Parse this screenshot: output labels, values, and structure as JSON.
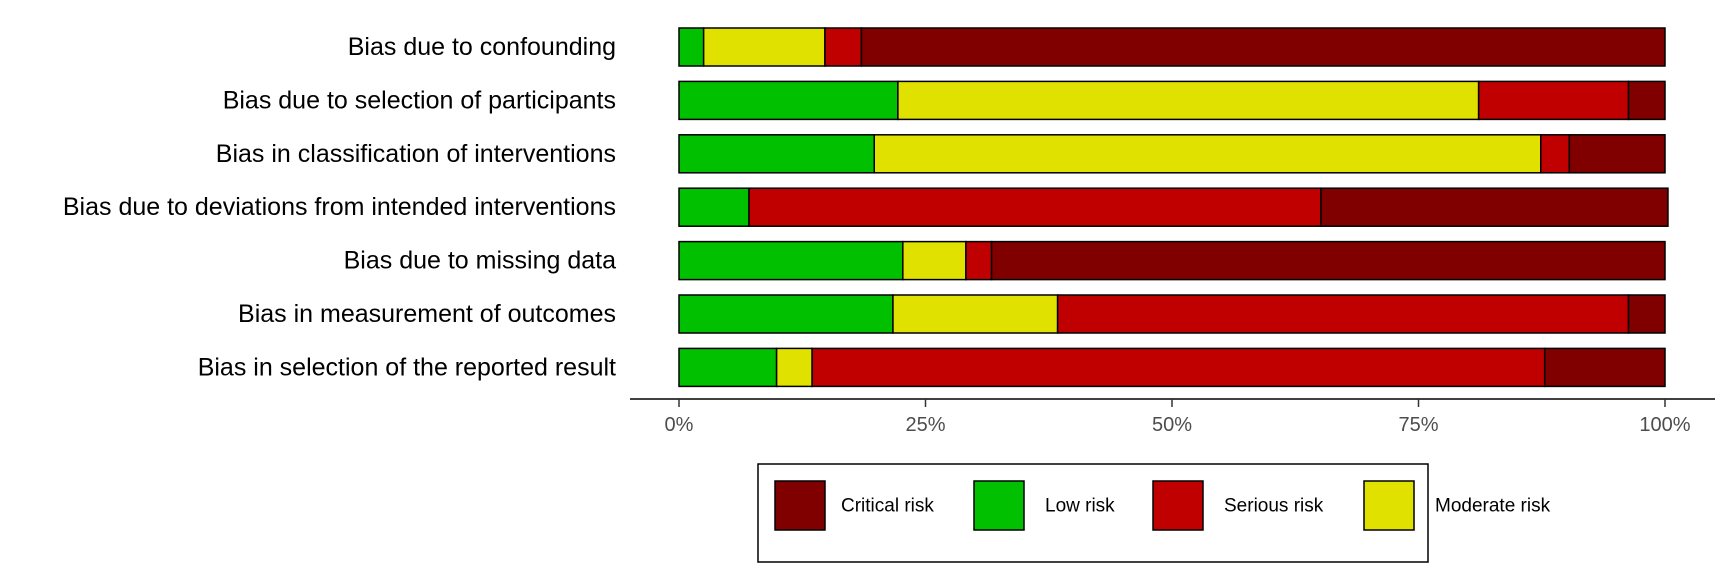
{
  "chart_data": {
    "type": "bar",
    "orientation": "horizontal",
    "stacked": true,
    "categories": [
      "Bias due to confounding",
      "Bias due to selection of participants",
      "Bias in classification of interventions",
      "Bias due to deviations from intended interventions",
      "Bias due to missing data",
      "Bias in measurement of outcomes",
      "Bias in selection of the reported result"
    ],
    "stack_order": [
      "Low risk",
      "Moderate risk",
      "Serious risk",
      "Critical risk"
    ],
    "series": [
      {
        "name": "Critical risk",
        "color": "#800000",
        "values": [
          81.5,
          3.7,
          9.7,
          35.2,
          68.3,
          3.7,
          12.2
        ]
      },
      {
        "name": "Low risk",
        "color": "#00c000",
        "values": [
          2.5,
          22.2,
          19.8,
          7.1,
          22.7,
          21.7,
          9.9
        ]
      },
      {
        "name": "Serious risk",
        "color": "#c00000",
        "values": [
          3.7,
          15.2,
          2.9,
          58.0,
          2.6,
          57.9,
          74.3
        ]
      },
      {
        "name": "Moderate risk",
        "color": "#e1e100",
        "values": [
          12.3,
          58.9,
          67.6,
          0.0,
          6.4,
          16.7,
          3.6
        ]
      }
    ],
    "x_ticks": [
      "0%",
      "25%",
      "50%",
      "75%",
      "100%"
    ],
    "xlim": [
      0,
      100
    ],
    "title": "",
    "xlabel": "",
    "ylabel": "",
    "grid": false,
    "legend_position": "bottom"
  }
}
